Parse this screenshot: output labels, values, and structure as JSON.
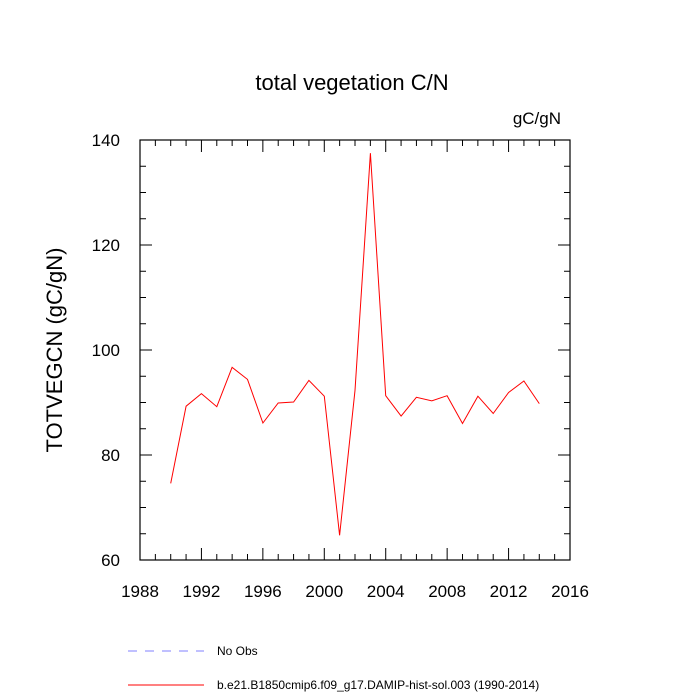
{
  "chart_data": {
    "type": "line",
    "title": "total vegetation C/N",
    "units_label": "gC/gN",
    "xlabel": "",
    "ylabel": "TOTVEGCN  (gC/gN)",
    "xlim": [
      1988,
      2016
    ],
    "ylim": [
      60,
      140
    ],
    "x_ticks": [
      1988,
      1992,
      1996,
      2000,
      2004,
      2008,
      2012,
      2016
    ],
    "y_ticks": [
      60,
      80,
      100,
      120,
      140
    ],
    "grid": false,
    "legend_position": "bottom",
    "series": [
      {
        "name": "b.e21.B1850cmip6.f09_g17.DAMIP-hist-sol.003 (1990-2014)",
        "color": "#ff0000",
        "x": [
          1990,
          1991,
          1992,
          1993,
          1994,
          1995,
          1996,
          1997,
          1998,
          1999,
          2000,
          2001,
          2002,
          2003,
          2004,
          2005,
          2006,
          2007,
          2008,
          2009,
          2010,
          2011,
          2012,
          2013,
          2014
        ],
        "y": [
          74.6,
          89.3,
          91.7,
          89.2,
          96.7,
          94.4,
          86.1,
          89.9,
          90.1,
          94.2,
          91.2,
          64.7,
          92.3,
          137.5,
          91.3,
          87.4,
          91.0,
          90.3,
          91.3,
          86.0,
          91.2,
          87.9,
          91.9,
          94.1,
          89.8
        ]
      }
    ],
    "legend": [
      {
        "label": "No Obs",
        "color": "#8080ff",
        "dash": true
      },
      {
        "label": "b.e21.B1850cmip6.f09_g17.DAMIP-hist-sol.003 (1990-2014)",
        "color": "#ff0000",
        "dash": false
      }
    ]
  }
}
